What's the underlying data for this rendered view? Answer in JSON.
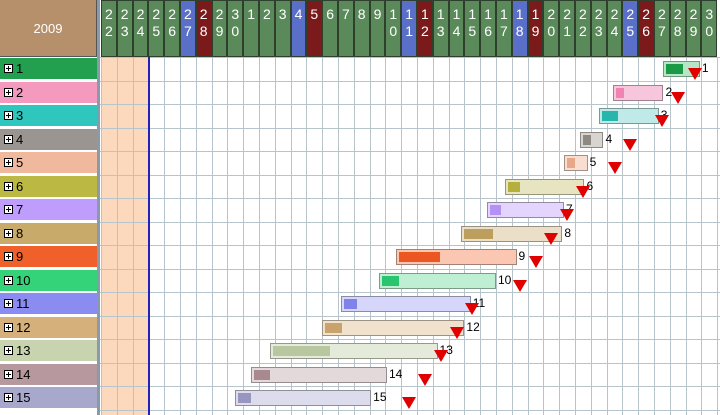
{
  "header": {
    "year": "2009"
  },
  "days": [
    {
      "label": "22",
      "color": "#5a8a5a"
    },
    {
      "label": "23",
      "color": "#5a8a5a"
    },
    {
      "label": "24",
      "color": "#5a8a5a"
    },
    {
      "label": "25",
      "color": "#5a8a5a"
    },
    {
      "label": "26",
      "color": "#5a8a5a"
    },
    {
      "label": "27",
      "color": "#5a6fc8"
    },
    {
      "label": "28",
      "color": "#7a1a1a"
    },
    {
      "label": "29",
      "color": "#5a8a5a"
    },
    {
      "label": "30",
      "color": "#5a8a5a"
    },
    {
      "label": "1",
      "color": "#5a8a5a"
    },
    {
      "label": "2",
      "color": "#5a8a5a"
    },
    {
      "label": "3",
      "color": "#5a8a5a"
    },
    {
      "label": "4",
      "color": "#5a6fc8"
    },
    {
      "label": "5",
      "color": "#7a1a1a"
    },
    {
      "label": "6",
      "color": "#5a8a5a"
    },
    {
      "label": "7",
      "color": "#5a8a5a"
    },
    {
      "label": "8",
      "color": "#5a8a5a"
    },
    {
      "label": "9",
      "color": "#5a8a5a"
    },
    {
      "label": "10",
      "color": "#5a8a5a"
    },
    {
      "label": "11",
      "color": "#5a6fc8"
    },
    {
      "label": "12",
      "color": "#7a1a1a"
    },
    {
      "label": "13",
      "color": "#5a8a5a"
    },
    {
      "label": "14",
      "color": "#5a8a5a"
    },
    {
      "label": "15",
      "color": "#5a8a5a"
    },
    {
      "label": "16",
      "color": "#5a8a5a"
    },
    {
      "label": "17",
      "color": "#5a8a5a"
    },
    {
      "label": "18",
      "color": "#5a6fc8"
    },
    {
      "label": "19",
      "color": "#7a1a1a"
    },
    {
      "label": "20",
      "color": "#5a8a5a"
    },
    {
      "label": "21",
      "color": "#5a8a5a"
    },
    {
      "label": "22",
      "color": "#5a8a5a"
    },
    {
      "label": "23",
      "color": "#5a8a5a"
    },
    {
      "label": "24",
      "color": "#5a8a5a"
    },
    {
      "label": "25",
      "color": "#5a6fc8"
    },
    {
      "label": "26",
      "color": "#7a1a1a"
    },
    {
      "label": "27",
      "color": "#5a8a5a"
    },
    {
      "label": "28",
      "color": "#5a8a5a"
    },
    {
      "label": "29",
      "color": "#5a8a5a"
    },
    {
      "label": "30",
      "color": "#5a8a5a"
    }
  ],
  "rows": [
    {
      "label": "1",
      "color": "#22a050",
      "barColor": "#b5e6c5",
      "progColor": "#1a9a46",
      "start": 35.6,
      "end": 37.9,
      "progress": 0.5,
      "deadline": 37.6
    },
    {
      "label": "2",
      "color": "#f59abf",
      "barColor": "#f8c6dc",
      "progColor": "#f083b1",
      "start": 32.4,
      "end": 35.6,
      "progress": 0.05,
      "deadline": 36.5
    },
    {
      "label": "3",
      "color": "#2fc7bd",
      "barColor": "#bfeae7",
      "progColor": "#28b6ac",
      "start": 31.5,
      "end": 35.3,
      "progress": 0.3,
      "deadline": 35.5
    },
    {
      "label": "4",
      "color": "#9a9590",
      "barColor": "#d8d4d0",
      "progColor": "#8e8983",
      "start": 30.3,
      "end": 31.8,
      "progress": 0.4,
      "deadline": 33.5
    },
    {
      "label": "5",
      "color": "#f0b99e",
      "barColor": "#f9ddd0",
      "progColor": "#e8a888",
      "start": 29.3,
      "end": 30.8,
      "progress": 0.4,
      "deadline": 32.5
    },
    {
      "label": "6",
      "color": "#bcb844",
      "barColor": "#e7e5c1",
      "progColor": "#b5b03e",
      "start": 25.6,
      "end": 30.6,
      "progress": 0.15,
      "deadline": 30.5
    },
    {
      "label": "7",
      "color": "#bf9dfc",
      "barColor": "#e3d5fd",
      "progColor": "#b491f5",
      "start": 24.4,
      "end": 29.3,
      "progress": 0.15,
      "deadline": 29.5
    },
    {
      "label": "8",
      "color": "#c8aa6a",
      "barColor": "#ebdfc8",
      "progColor": "#bc9e5e",
      "start": 22.8,
      "end": 29.2,
      "progress": 0.3,
      "deadline": 28.5
    },
    {
      "label": "9",
      "color": "#f0602a",
      "barColor": "#fbc7b2",
      "progColor": "#ec5620",
      "start": 18.7,
      "end": 26.3,
      "progress": 0.35,
      "deadline": 27.5
    },
    {
      "label": "10",
      "color": "#34d37a",
      "barColor": "#bfefd3",
      "progColor": "#2bc46e",
      "start": 17.6,
      "end": 25.0,
      "progress": 0.15,
      "deadline": 26.5
    },
    {
      "label": "11",
      "color": "#8b8cf2",
      "barColor": "#d6d6fa",
      "progColor": "#8181ea",
      "start": 15.2,
      "end": 23.4,
      "progress": 0.1,
      "deadline": 23.5
    },
    {
      "label": "12",
      "color": "#d5b07a",
      "barColor": "#f0e2cd",
      "progColor": "#c9a26c",
      "start": 14.0,
      "end": 23.0,
      "progress": 0.12,
      "deadline": 22.5
    },
    {
      "label": "13",
      "color": "#c8d4b0",
      "barColor": "#e5ebda",
      "progColor": "#b9c7a0",
      "start": 10.7,
      "end": 21.3,
      "progress": 0.35,
      "deadline": 21.5
    },
    {
      "label": "14",
      "color": "#b7989f",
      "barColor": "#e3d8da",
      "progColor": "#a98990",
      "start": 9.5,
      "end": 18.1,
      "progress": 0.12,
      "deadline": 20.5
    },
    {
      "label": "15",
      "color": "#a8a7cc",
      "barColor": "#dcdcec",
      "progColor": "#9796c0",
      "start": 8.5,
      "end": 17.1,
      "progress": 0.1,
      "deadline": 19.5
    }
  ],
  "colors": {
    "today_line": "#2222bb",
    "deadline_marker": "#e00000",
    "weekend_shade": "#fcd9bd"
  }
}
